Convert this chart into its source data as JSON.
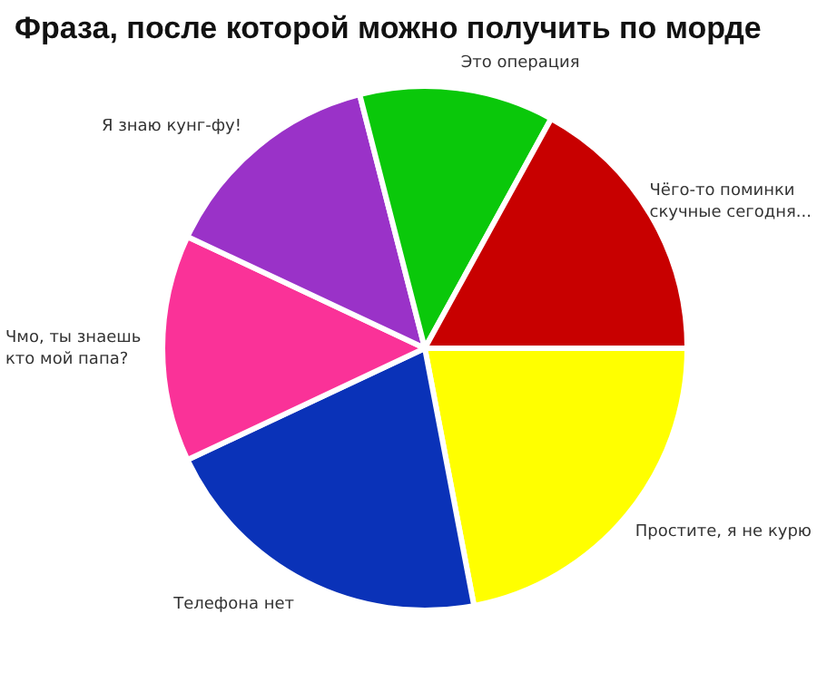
{
  "chart_data": {
    "type": "pie",
    "title": "Фраза, после которой можно получить по морде",
    "categories": [
      "Простите, я не курю",
      "Телефона нет",
      "Чмо, ты знаешь\nкто мой папа?",
      "Я знаю кунг-фу!",
      "Это операция",
      "Чёго-то поминки\nскучные сегодня..."
    ],
    "values": [
      22,
      21,
      14,
      14,
      12,
      17
    ],
    "colors": [
      "#ffff00",
      "#0a32b8",
      "#fa3298",
      "#9a32c8",
      "#0ac80a",
      "#c80000"
    ],
    "legend": false
  }
}
